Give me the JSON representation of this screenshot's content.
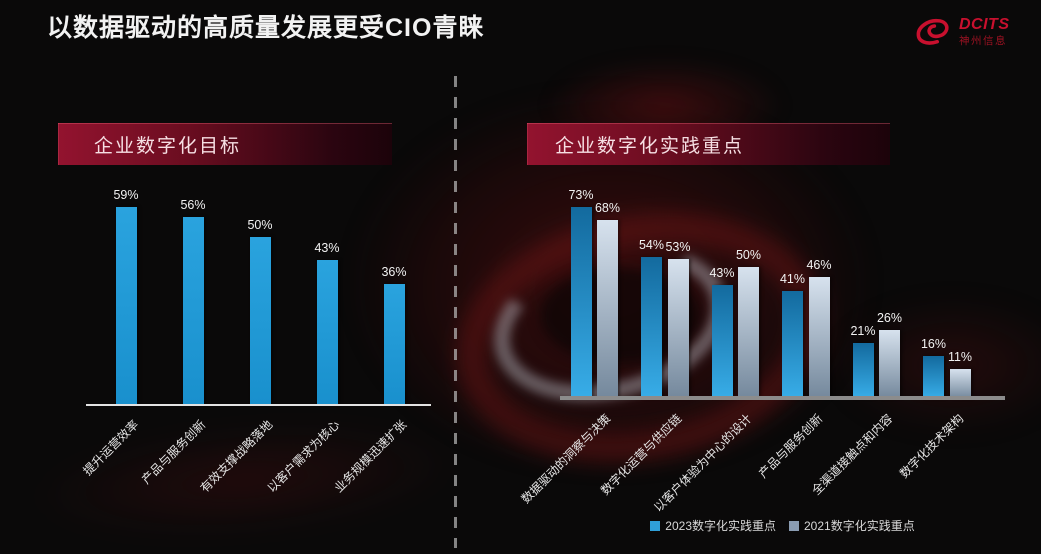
{
  "title": "以数据驱动的高质量发展更受CIO青睐",
  "logo": {
    "brand": "DCITS",
    "subbrand": "神州信息",
    "color": "#c8102e"
  },
  "legend": {
    "swatch_2023": "#2f9fd8",
    "swatch_2021": "#8a9cb2"
  },
  "colors": {
    "background": "#0a0909",
    "banner_red": "#93132f",
    "axis_left": "#e3e3e3",
    "axis_right": "#8c8c8c",
    "bar_2023_top": "#136a9e",
    "bar_2023_bottom": "#38ade8",
    "bar_2021_top": "#d7e2ee",
    "bar_2021_bottom": "#74889c",
    "bar_goal_top": "#2aa3de",
    "bar_goal_bottom": "#1990cd"
  },
  "chart_data": [
    {
      "type": "bar",
      "title": "企业数字化目标",
      "unit": "%",
      "categories": [
        "提升运营效率",
        "产品与服务创新",
        "有效支撑战略落地",
        "以客户需求为核心",
        "业务规模迅速扩张"
      ],
      "series": [
        {
          "name": "企业数字化目标",
          "values": [
            59,
            56,
            50,
            43,
            36
          ],
          "color_top": "#2aa3de",
          "color_bottom": "#1990cd"
        }
      ],
      "ylim": [
        0,
        70
      ],
      "grid": false,
      "value_labels": true,
      "legend_position": "none",
      "category_label_rotation": 45
    },
    {
      "type": "bar",
      "title": "企业数字化实践重点",
      "unit": "%",
      "categories": [
        "数据驱动的洞察与决策",
        "数字化运营与供应链",
        "以客户体验为中心的设计",
        "产品与服务创新",
        "全渠道接触点和内容",
        "数字化技术架构"
      ],
      "series": [
        {
          "name": "2023数字化实践重点",
          "values": [
            73,
            54,
            43,
            41,
            21,
            16
          ],
          "color_top": "#136a9e",
          "color_bottom": "#38ade8"
        },
        {
          "name": "2021数字化实践重点",
          "values": [
            68,
            53,
            50,
            46,
            26,
            11
          ],
          "color_top": "#d7e2ee",
          "color_bottom": "#74889c"
        }
      ],
      "ylim": [
        0,
        80
      ],
      "grid": false,
      "value_labels": true,
      "legend_position": "bottom",
      "category_label_rotation": 45
    }
  ]
}
